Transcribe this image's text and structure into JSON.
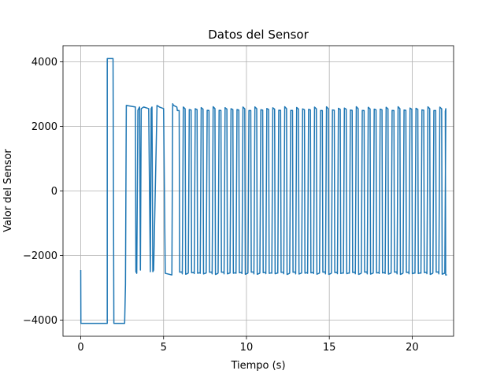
{
  "chart_data": {
    "type": "line",
    "title": "Datos del Sensor",
    "xlabel": "Tiempo (s)",
    "ylabel": "Valor del Sensor",
    "xlim": [
      -1.07,
      22.5
    ],
    "ylim": [
      -4500,
      4500
    ],
    "xticks": [
      0,
      5,
      10,
      15,
      20
    ],
    "xtick_labels": [
      "0",
      "5",
      "10",
      "15",
      "20"
    ],
    "yticks": [
      -4000,
      -2000,
      0,
      2000,
      4000
    ],
    "ytick_labels": [
      "−4000",
      "−2000",
      "0",
      "2000",
      "4000"
    ],
    "grid": true,
    "series": [
      {
        "color": "#1f77b4",
        "x": [
          0.0,
          0.01,
          1.6,
          1.6,
          1.95,
          2.0,
          2.65,
          2.7,
          2.75,
          3.3,
          3.33,
          3.38,
          3.45,
          3.55,
          3.6,
          3.6,
          3.65,
          3.8,
          4.1,
          4.2,
          4.2,
          4.25,
          4.3,
          4.35,
          4.4,
          4.6,
          4.6,
          4.75,
          5.0,
          5.1,
          5.5,
          5.55,
          5.6,
          5.8
        ],
        "y": [
          -2450,
          -4100,
          -4100,
          4100,
          4100,
          -4100,
          -4100,
          -2900,
          2650,
          2600,
          -2500,
          -2550,
          2500,
          2600,
          -2450,
          -2450,
          2550,
          2600,
          2550,
          -2450,
          -2500,
          2550,
          2600,
          -2500,
          -2450,
          2550,
          2650,
          2600,
          2550,
          -2550,
          -2600,
          2700,
          2650,
          2600
        ],
        "periodic": {
          "start": 5.8,
          "end": 22.0,
          "period": 0.36,
          "high": 2550,
          "low": -2550,
          "end_value": -2600
        }
      }
    ]
  }
}
